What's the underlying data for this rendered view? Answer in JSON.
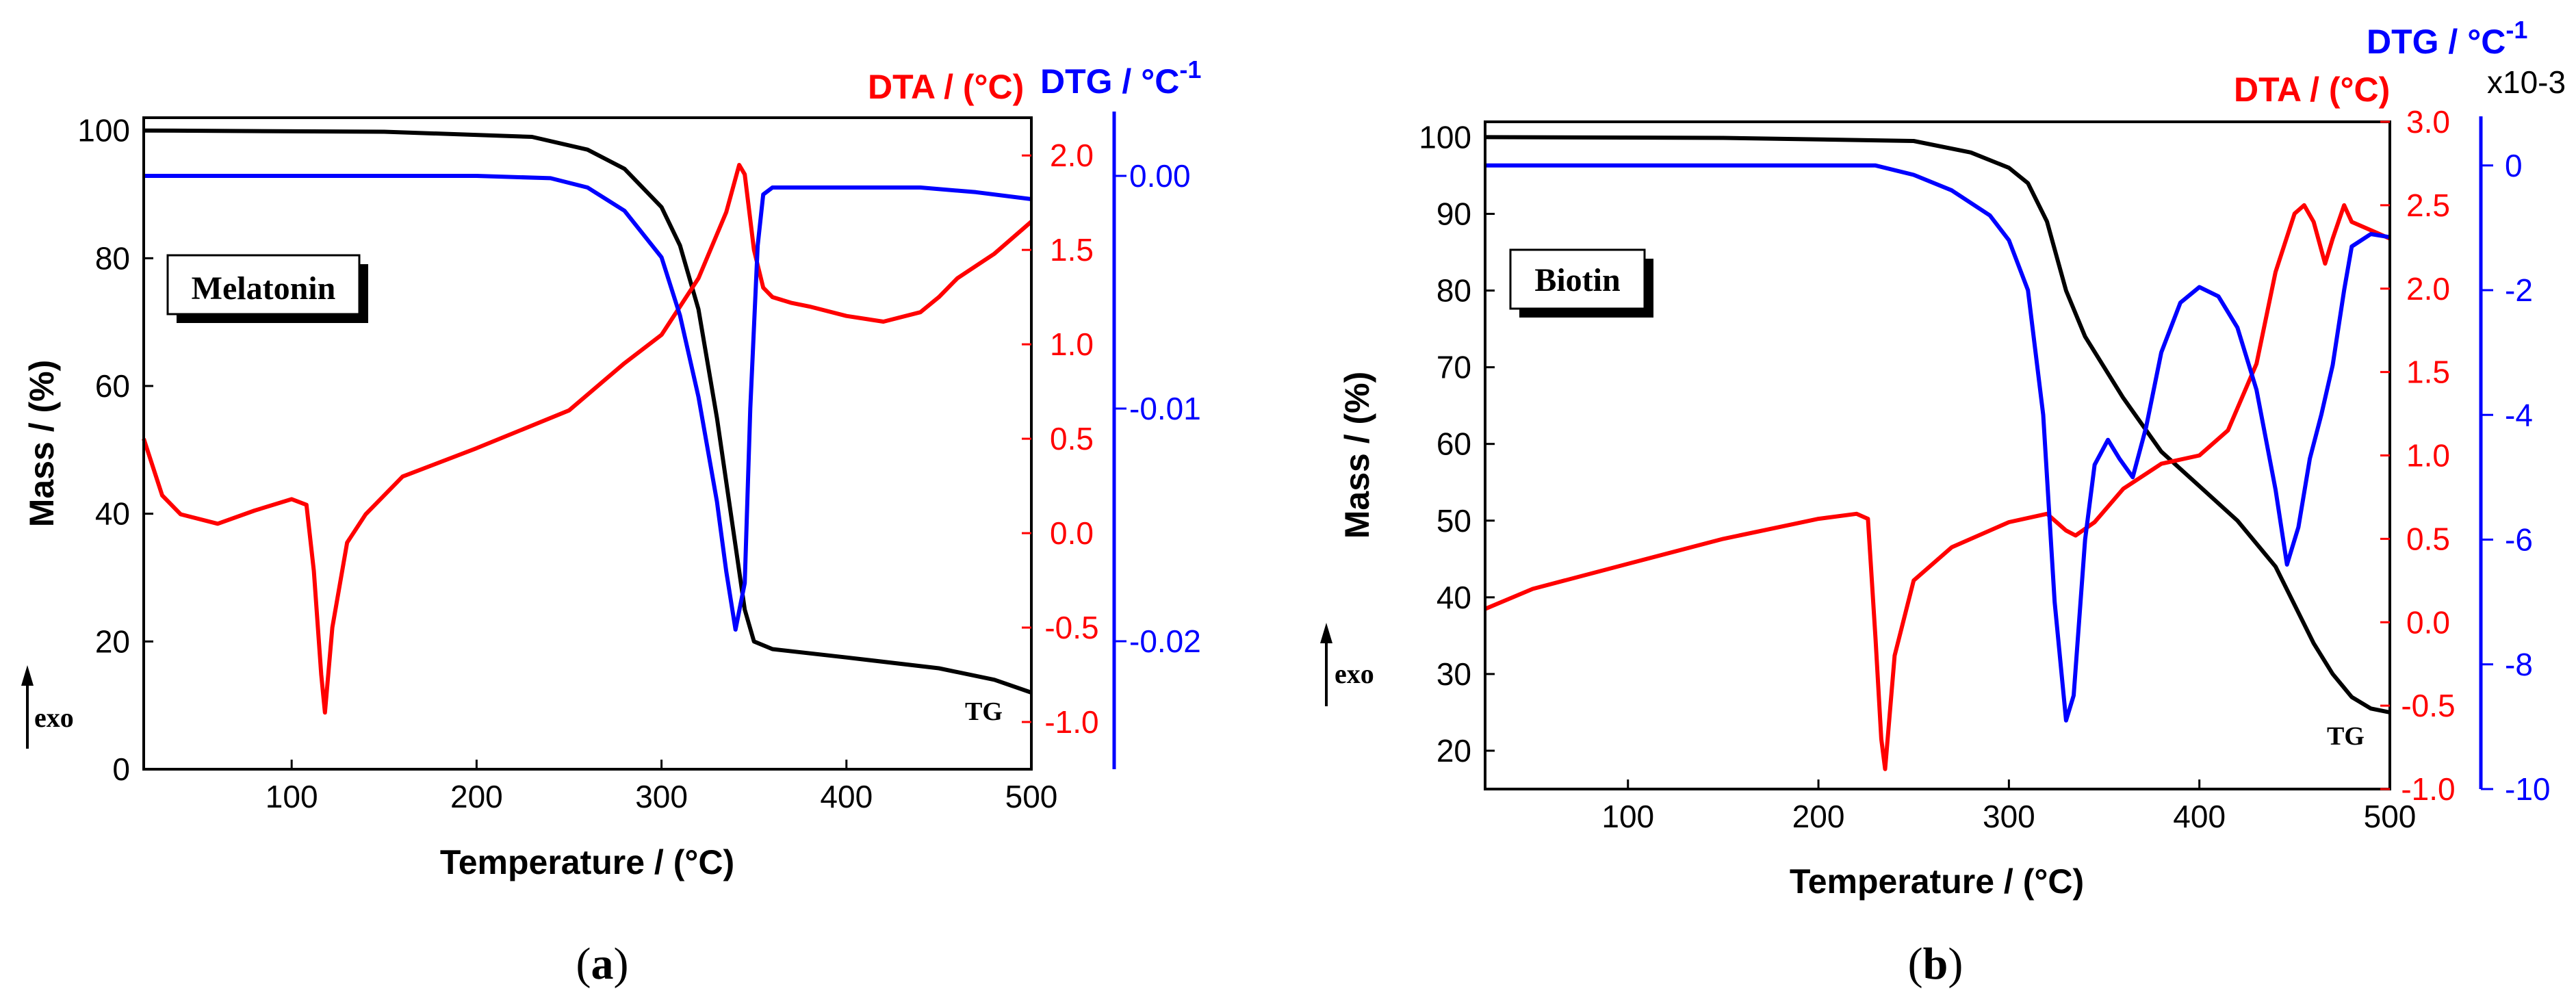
{
  "colors": {
    "tg": "#000000",
    "dta": "#ff0000",
    "dtg": "#0000ff"
  },
  "chart_data": [
    {
      "type": "line",
      "panel_label": "a",
      "sample": "Melatonin",
      "xlabel": "Temperature / (°C)",
      "xlim": [
        20,
        500
      ],
      "xticks": [
        100,
        200,
        300,
        400,
        500
      ],
      "axes": {
        "mass": {
          "label": "Mass / (%)",
          "lim": [
            0,
            102
          ],
          "ticks": [
            0,
            20,
            40,
            60,
            80,
            100
          ]
        },
        "dta": {
          "label": "DTA / (°C)",
          "lim": [
            -1.25,
            2.2
          ],
          "ticks": [
            -1.0,
            -0.5,
            0.0,
            0.5,
            1.0,
            1.5,
            2.0
          ]
        },
        "dtg": {
          "label": "DTG / °C",
          "label_sup": "-1",
          "multiplier": "",
          "lim": [
            -0.0255,
            0.0025
          ],
          "ticks": [
            -0.02,
            -0.01,
            0.0
          ],
          "tick_labels": [
            "-0.02",
            "-0.01",
            "0.00"
          ]
        }
      },
      "annotations": {
        "tg_label": "TG",
        "exo_label": "exo"
      },
      "series": [
        {
          "name": "TG",
          "axis": "mass",
          "color": "#000000",
          "x": [
            20,
            150,
            230,
            260,
            280,
            300,
            310,
            320,
            330,
            340,
            345,
            350,
            360,
            400,
            450,
            480,
            500
          ],
          "y": [
            100,
            99.8,
            99,
            97,
            94,
            88,
            82,
            72,
            55,
            35,
            25,
            20,
            18.8,
            17.5,
            15.8,
            14,
            12
          ]
        },
        {
          "name": "DTA",
          "axis": "dta",
          "color": "#ff0000",
          "x": [
            20,
            30,
            40,
            60,
            80,
            100,
            108,
            112,
            116,
            118,
            122,
            130,
            140,
            160,
            200,
            250,
            280,
            300,
            320,
            335,
            342,
            345,
            350,
            355,
            360,
            370,
            380,
            400,
            420,
            440,
            450,
            460,
            480,
            500
          ],
          "y": [
            0.5,
            0.2,
            0.1,
            0.05,
            0.12,
            0.18,
            0.15,
            -0.2,
            -0.75,
            -0.95,
            -0.5,
            -0.05,
            0.1,
            0.3,
            0.45,
            0.65,
            0.9,
            1.05,
            1.35,
            1.7,
            1.95,
            1.9,
            1.5,
            1.3,
            1.25,
            1.22,
            1.2,
            1.15,
            1.12,
            1.17,
            1.25,
            1.35,
            1.48,
            1.65
          ]
        },
        {
          "name": "DTG",
          "axis": "dtg",
          "color": "#0000ff",
          "x": [
            20,
            200,
            240,
            260,
            280,
            300,
            310,
            320,
            330,
            335,
            340,
            345,
            348,
            352,
            355,
            360,
            370,
            400,
            440,
            470,
            500
          ],
          "y": [
            0,
            0,
            -0.0001,
            -0.0005,
            -0.0015,
            -0.0035,
            -0.006,
            -0.0095,
            -0.014,
            -0.017,
            -0.0195,
            -0.0175,
            -0.01,
            -0.003,
            -0.0008,
            -0.0005,
            -0.0005,
            -0.0005,
            -0.0005,
            -0.0007,
            -0.001
          ]
        }
      ]
    },
    {
      "type": "line",
      "panel_label": "b",
      "sample": "Biotin",
      "xlabel": "Temperature / (°C)",
      "xlim": [
        25,
        500
      ],
      "xticks": [
        100,
        200,
        300,
        400,
        500
      ],
      "axes": {
        "mass": {
          "label": "Mass / (%)",
          "lim": [
            15,
            102
          ],
          "ticks": [
            20,
            30,
            40,
            50,
            60,
            70,
            80,
            90,
            100
          ]
        },
        "dta": {
          "label": "DTA / (°C)",
          "lim": [
            -1.0,
            3.0
          ],
          "ticks": [
            -1.0,
            -0.5,
            0.0,
            0.5,
            1.0,
            1.5,
            2.0,
            2.5,
            3.0
          ]
        },
        "dtg": {
          "label": "DTG / °C",
          "label_sup": "-1",
          "multiplier": "x10-3",
          "lim": [
            -10,
            0.7
          ],
          "ticks": [
            -10,
            -8,
            -6,
            -4,
            -2,
            0
          ],
          "tick_labels": [
            "-10",
            "-8",
            "-6",
            "-4",
            "-2",
            "0"
          ]
        }
      },
      "annotations": {
        "tg_label": "TG",
        "exo_label": "exo"
      },
      "series": [
        {
          "name": "TG",
          "axis": "mass",
          "color": "#000000",
          "x": [
            25,
            150,
            250,
            280,
            300,
            310,
            320,
            330,
            340,
            360,
            380,
            400,
            420,
            440,
            460,
            470,
            480,
            490,
            500
          ],
          "y": [
            100,
            99.9,
            99.5,
            98,
            96,
            94,
            89,
            80,
            74,
            66,
            59,
            54.5,
            50,
            44,
            34,
            30,
            27,
            25.5,
            25
          ]
        },
        {
          "name": "DTA",
          "axis": "dta",
          "color": "#ff0000",
          "x": [
            25,
            50,
            100,
            150,
            200,
            220,
            226,
            230,
            233,
            235,
            240,
            250,
            270,
            300,
            320,
            330,
            335,
            345,
            360,
            380,
            400,
            415,
            430,
            440,
            450,
            455,
            460,
            466,
            470,
            476,
            480,
            490,
            500
          ],
          "y": [
            0.08,
            0.2,
            0.35,
            0.5,
            0.62,
            0.65,
            0.62,
            -0.1,
            -0.7,
            -0.88,
            -0.2,
            0.25,
            0.45,
            0.6,
            0.65,
            0.55,
            0.52,
            0.6,
            0.8,
            0.95,
            1.0,
            1.15,
            1.55,
            2.1,
            2.45,
            2.5,
            2.4,
            2.15,
            2.3,
            2.5,
            2.4,
            2.35,
            2.3
          ]
        },
        {
          "name": "DTG",
          "axis": "dtg",
          "color": "#0000ff",
          "x": [
            25,
            200,
            230,
            250,
            270,
            290,
            300,
            310,
            318,
            324,
            330,
            334,
            340,
            345,
            352,
            358,
            365,
            372,
            380,
            390,
            400,
            410,
            420,
            430,
            440,
            446,
            452,
            458,
            464,
            470,
            476,
            480,
            490,
            500
          ],
          "y": [
            0,
            0,
            0,
            -0.15,
            -0.4,
            -0.8,
            -1.2,
            -2.0,
            -4.0,
            -7.0,
            -8.9,
            -8.5,
            -6.0,
            -4.8,
            -4.4,
            -4.7,
            -5.0,
            -4.2,
            -3.0,
            -2.2,
            -1.95,
            -2.1,
            -2.6,
            -3.6,
            -5.2,
            -6.4,
            -5.8,
            -4.7,
            -4.0,
            -3.2,
            -2.0,
            -1.3,
            -1.1,
            -1.15
          ]
        }
      ]
    }
  ]
}
